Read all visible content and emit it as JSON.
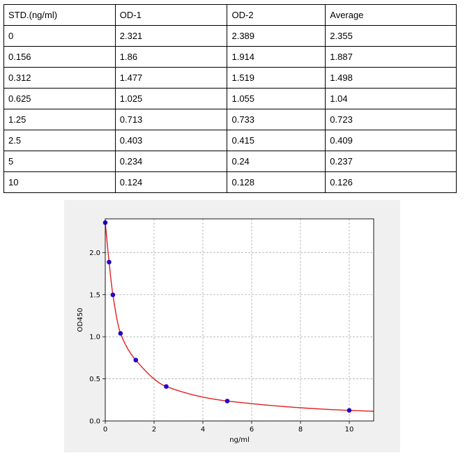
{
  "table": {
    "headers": [
      "STD.(ng/ml)",
      "OD-1",
      "OD-2",
      "Average"
    ],
    "rows": [
      [
        "0",
        "2.321",
        "2.389",
        "2.355"
      ],
      [
        "0.156",
        "1.86",
        "1.914",
        "1.887"
      ],
      [
        "0.312",
        "1.477",
        "1.519",
        "1.498"
      ],
      [
        "0.625",
        "1.025",
        "1.055",
        "1.04"
      ],
      [
        "1.25",
        "0.713",
        "0.733",
        "0.723"
      ],
      [
        "2.5",
        "0.403",
        "0.415",
        "0.409"
      ],
      [
        "5",
        "0.234",
        "0.24",
        "0.237"
      ],
      [
        "10",
        "0.124",
        "0.128",
        "0.126"
      ]
    ]
  },
  "chart_data": {
    "type": "scatter",
    "title": "",
    "xlabel": "ng/ml",
    "ylabel": "OD450",
    "xlim": [
      0,
      11
    ],
    "ylim": [
      0,
      2.4
    ],
    "xticks": [
      "0",
      "2",
      "4",
      "6",
      "8",
      "10"
    ],
    "yticks": [
      "0.0",
      "0.5",
      "1.0",
      "1.5",
      "2.0"
    ],
    "grid": true,
    "series": [
      {
        "x": [
          0,
          0.156,
          0.312,
          0.625,
          1.25,
          2.5,
          5,
          10
        ],
        "y": [
          2.355,
          1.887,
          1.498,
          1.04,
          0.723,
          0.409,
          0.237,
          0.126
        ]
      }
    ],
    "fit_curve": true,
    "colors": {
      "points": "#2200cc",
      "curve": "#e02020",
      "grid": "#b0b0b0",
      "background": "#f0f0f0"
    }
  }
}
